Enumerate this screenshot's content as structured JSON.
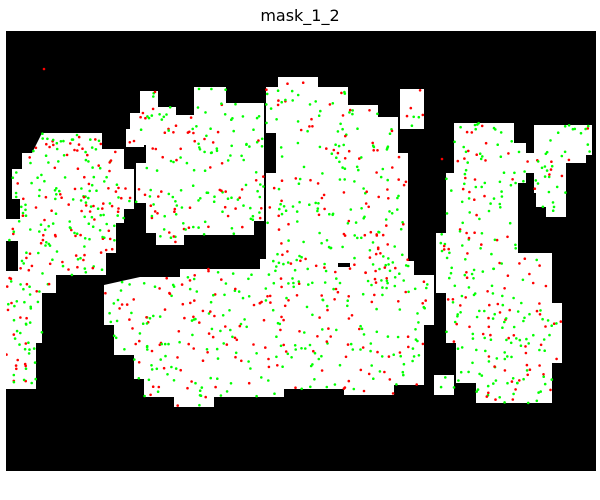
{
  "figure": {
    "title": "mask_1_2"
  },
  "image": {
    "description_colors": {
      "background": "#000000",
      "mask": "#ffffff",
      "point_green": "#00ff00",
      "point_red": "#ff0000"
    }
  }
}
